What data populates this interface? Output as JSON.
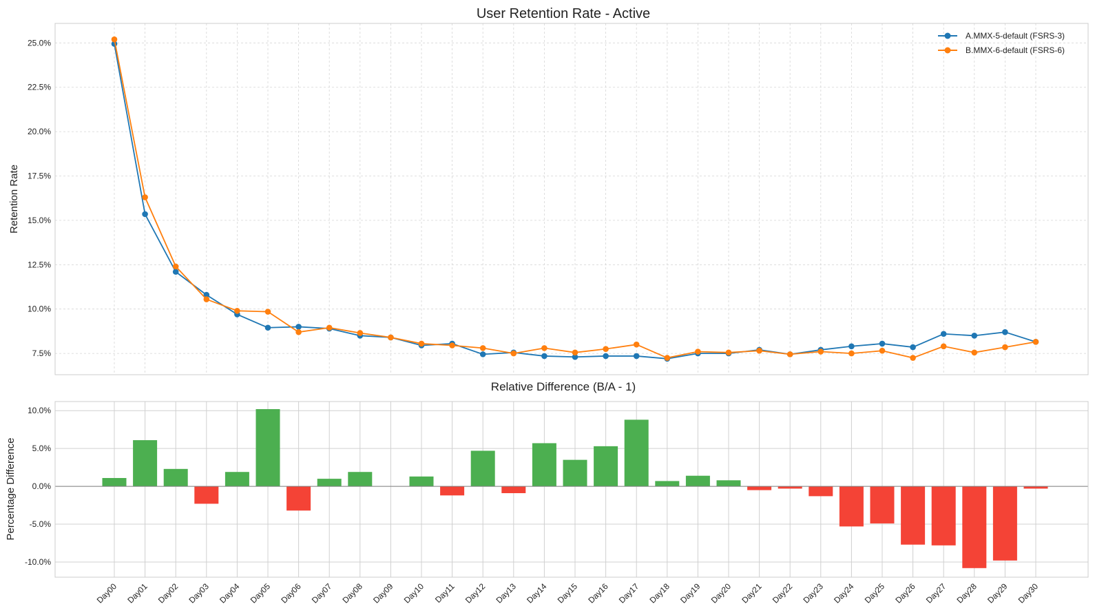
{
  "chart_data": [
    {
      "type": "line",
      "title": "User Retention Rate - Active",
      "xlabel": "",
      "ylabel": "Retention Rate",
      "ylim": [
        6.3,
        26.1
      ],
      "yticks": [
        "7.5%",
        "10.0%",
        "12.5%",
        "15.0%",
        "17.5%",
        "20.0%",
        "22.5%",
        "25.0%"
      ],
      "ytick_values": [
        7.5,
        10.0,
        12.5,
        15.0,
        17.5,
        20.0,
        22.5,
        25.0
      ],
      "grid": true,
      "legend_position": "top-right",
      "categories": [
        "Day00",
        "Day01",
        "Day02",
        "Day03",
        "Day04",
        "Day05",
        "Day06",
        "Day07",
        "Day08",
        "Day09",
        "Day10",
        "Day11",
        "Day12",
        "Day13",
        "Day14",
        "Day15",
        "Day16",
        "Day17",
        "Day18",
        "Day19",
        "Day20",
        "Day21",
        "Day22",
        "Day23",
        "Day24",
        "Day25",
        "Day26",
        "Day27",
        "Day28",
        "Day29",
        "Day30"
      ],
      "series": [
        {
          "name": "A.MMX-5-default (FSRS-3)",
          "color": "#1f77b4",
          "values": [
            24.95,
            15.35,
            12.1,
            10.8,
            9.7,
            8.95,
            9.0,
            8.9,
            8.5,
            8.4,
            7.95,
            8.05,
            7.45,
            7.55,
            7.35,
            7.3,
            7.35,
            7.35,
            7.2,
            7.5,
            7.5,
            7.7,
            7.45,
            7.7,
            7.9,
            8.05,
            7.85,
            8.6,
            8.5,
            8.7,
            8.15
          ]
        },
        {
          "name": "B.MMX-6-default (FSRS-6)",
          "color": "#ff7f0e",
          "values": [
            25.2,
            16.3,
            12.4,
            10.55,
            9.9,
            9.85,
            8.7,
            8.95,
            8.65,
            8.4,
            8.05,
            7.95,
            7.8,
            7.5,
            7.8,
            7.55,
            7.75,
            8.0,
            7.25,
            7.6,
            7.55,
            7.65,
            7.45,
            7.6,
            7.5,
            7.65,
            7.25,
            7.9,
            7.55,
            7.85,
            8.15
          ]
        }
      ]
    },
    {
      "type": "bar",
      "title": "Relative Difference (B/A - 1)",
      "xlabel": "",
      "ylabel": "Percentage Difference",
      "ylim": [
        -12.0,
        11.2
      ],
      "yticks": [
        "10.0%",
        "5.0%",
        "0.0%",
        "-5.0%",
        "-10.0%"
      ],
      "ytick_values": [
        10.0,
        5.0,
        0.0,
        -5.0,
        -10.0
      ],
      "grid": true,
      "positive_color": "#4caf50",
      "negative_color": "#f44336",
      "categories": [
        "Day00",
        "Day01",
        "Day02",
        "Day03",
        "Day04",
        "Day05",
        "Day06",
        "Day07",
        "Day08",
        "Day09",
        "Day10",
        "Day11",
        "Day12",
        "Day13",
        "Day14",
        "Day15",
        "Day16",
        "Day17",
        "Day18",
        "Day19",
        "Day20",
        "Day21",
        "Day22",
        "Day23",
        "Day24",
        "Day25",
        "Day26",
        "Day27",
        "Day28",
        "Day29",
        "Day30"
      ],
      "values": [
        1.1,
        6.1,
        2.3,
        -2.3,
        1.9,
        10.2,
        -3.2,
        1.0,
        1.9,
        0.0,
        1.3,
        -1.2,
        4.7,
        -0.9,
        5.7,
        3.5,
        5.3,
        8.8,
        0.7,
        1.4,
        0.8,
        -0.5,
        -0.3,
        -1.3,
        -5.3,
        -4.9,
        -7.7,
        -7.8,
        -10.8,
        -9.8,
        -0.3
      ]
    }
  ]
}
